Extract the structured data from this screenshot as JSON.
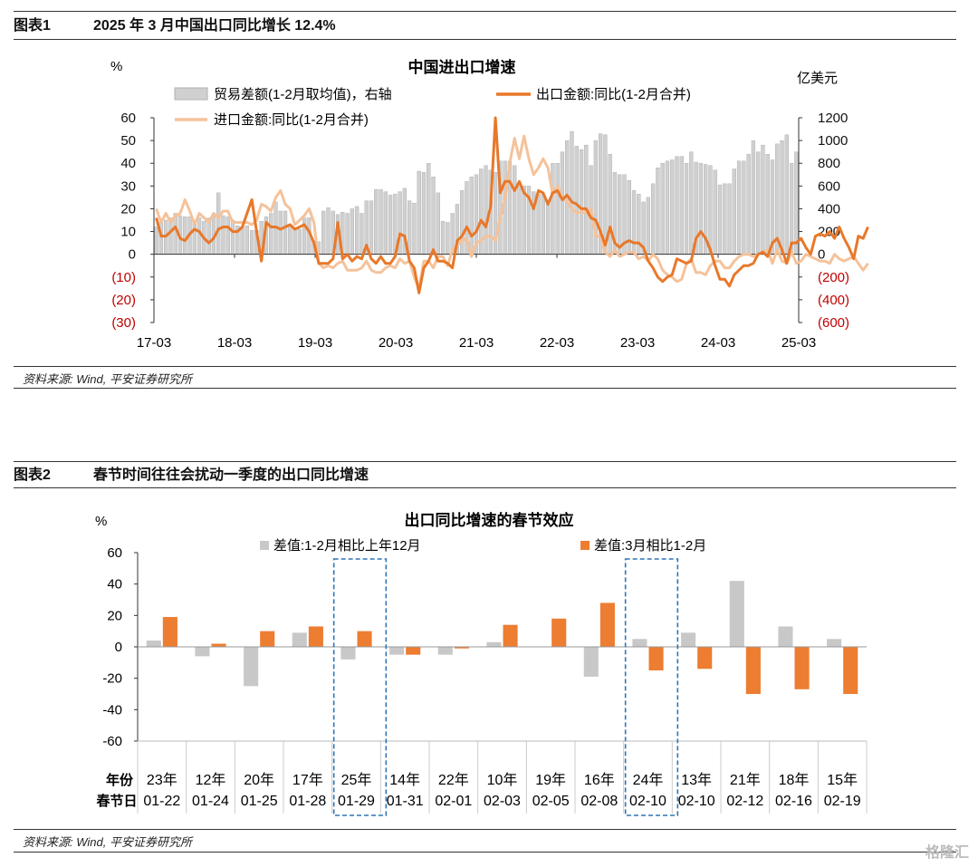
{
  "fig1": {
    "number": "图表1",
    "caption": "2025 年 3 月中国出口同比增长 12.4%",
    "source": "资料来源: Wind, 平安证券研究所",
    "chart_data": {
      "type": "bar+line",
      "title": "中国进出口增速",
      "left_unit": "%",
      "right_unit": "亿美元",
      "left_ylim": [
        -30,
        60
      ],
      "right_ylim": [
        -600,
        1200
      ],
      "left_ticks": [
        "60",
        "50",
        "40",
        "30",
        "20",
        "10",
        "0",
        "(10)",
        "(20)",
        "(30)"
      ],
      "right_ticks": [
        "1200",
        "1000",
        "800",
        "600",
        "400",
        "200",
        "0",
        "(200)",
        "(400)",
        "(600)"
      ],
      "x_ticks": [
        "17-03",
        "18-03",
        "19-03",
        "20-03",
        "21-03",
        "22-03",
        "23-03",
        "24-03",
        "25-03"
      ],
      "legend": {
        "trade": "贸易差额(1-2月取均值)，右轴",
        "export": "出口金额:同比(1-2月合并)",
        "import": "进口金额:同比(1-2月合并)"
      },
      "colors": {
        "trade": "#d0d0d0",
        "export": "#e8782a",
        "import": "#f5c29a",
        "negative_tick": "#c00000"
      },
      "series": {
        "trade_balance": [
          240,
          280,
          300,
          320,
          360,
          340,
          330,
          330,
          300,
          320,
          290,
          320,
          340,
          540,
          340,
          330,
          300,
          250,
          240,
          250,
          210,
          210,
          290,
          330,
          360,
          460,
          380,
          380,
          260,
          220,
          220,
          320,
          320,
          120,
          110,
          380,
          410,
          380,
          350,
          370,
          360,
          400,
          420,
          360,
          470,
          470,
          570,
          570,
          550,
          520,
          530,
          550,
          580,
          470,
          450,
          730,
          720,
          800,
          680,
          540,
          290,
          280,
          360,
          440,
          560,
          640,
          680,
          700,
          750,
          780,
          740,
          720,
          820,
          820,
          820,
          780,
          600,
          600,
          600,
          550,
          530,
          530,
          480,
          800,
          800,
          900,
          1000,
          1080,
          950,
          920,
          960,
          780,
          1000,
          1060,
          1050,
          880,
          720,
          700,
          700,
          650,
          560,
          530,
          460,
          500,
          620,
          760,
          800,
          820,
          830,
          860,
          860,
          800,
          900,
          810,
          800,
          790,
          780,
          740,
          610,
          620,
          620,
          750,
          820,
          820,
          880,
          1000,
          900,
          960,
          880,
          830,
          970,
          1000,
          1050,
          800,
          900
        ],
        "export_yoy": [
          16,
          8,
          8,
          10,
          12,
          7,
          6,
          9,
          11,
          10,
          7,
          5,
          7,
          11,
          12,
          12,
          10,
          10,
          12,
          18,
          24,
          10,
          -3,
          14,
          12,
          12,
          11,
          12,
          13,
          11,
          12,
          13,
          10,
          5,
          -4,
          -4,
          -4,
          -2,
          14,
          -2,
          0,
          -3,
          -1,
          -2,
          4,
          -2,
          -4,
          -1,
          -4,
          -4,
          -1,
          9,
          8,
          -3,
          -6,
          -17,
          -6,
          -3,
          2,
          -3,
          -3,
          -4,
          -6,
          6,
          8,
          12,
          8,
          10,
          15,
          12,
          21,
          60,
          27,
          32,
          32,
          28,
          32,
          27,
          25,
          20,
          28,
          27,
          22,
          27,
          28,
          24,
          26,
          23,
          22,
          20,
          20,
          16,
          15,
          10,
          4,
          12,
          5,
          3,
          5,
          6,
          5,
          5,
          3,
          -3,
          -6,
          -10,
          -12,
          -10,
          -9,
          -2,
          -3,
          -4,
          -3,
          7,
          10,
          7,
          2,
          -5,
          -11,
          -11,
          -14,
          -9,
          -7,
          -5,
          -5,
          -4,
          0,
          1,
          -1,
          5,
          7,
          2,
          -4,
          5,
          5,
          7,
          3,
          0,
          8,
          9,
          8,
          10,
          7,
          12,
          7,
          3,
          -2,
          8,
          7,
          12
        ],
        "import_yoy": [
          20,
          14,
          18,
          14,
          17,
          18,
          24,
          19,
          13,
          18,
          16,
          14,
          18,
          16,
          19,
          19,
          14,
          14,
          14,
          14,
          13,
          15,
          22,
          21,
          19,
          25,
          28,
          22,
          20,
          13,
          15,
          17,
          20,
          14,
          -4,
          -6,
          -5,
          -6,
          -4,
          -3,
          -7,
          -7,
          -7,
          -6,
          -3,
          -7,
          -8,
          -8,
          -6,
          -5,
          -6,
          -2,
          -4,
          -3,
          -10,
          -15,
          -3,
          -3,
          -6,
          -1,
          -1,
          -5,
          2,
          4,
          6,
          7,
          -1,
          5,
          6,
          8,
          8,
          6,
          16,
          24,
          40,
          51,
          42,
          52,
          42,
          35,
          38,
          42,
          38,
          26,
          30,
          25,
          23,
          20,
          18,
          19,
          18,
          20,
          8,
          8,
          1,
          -1,
          2,
          -1,
          0,
          1,
          1,
          -2,
          -1,
          -3,
          0,
          -2,
          -7,
          -9,
          -10,
          -12,
          -11,
          -4,
          -2,
          -8,
          -8,
          -9,
          -5,
          -3,
          -3,
          -6,
          -6,
          -3,
          -1,
          0,
          0,
          -1,
          0,
          1,
          2,
          -4,
          2,
          -3,
          -4,
          1,
          -4,
          -3,
          0,
          -1,
          -2,
          -3,
          -3,
          -4,
          0,
          -2,
          -3,
          -2,
          -1,
          -4,
          -7,
          -4
        ]
      }
    }
  },
  "fig2": {
    "number": "图表2",
    "caption": "春节时间往往会扰动一季度的出口同比增速",
    "source": "资料来源: Wind, 平安证券研究所",
    "chart_data": {
      "type": "bar",
      "title": "出口同比增速的春节效应",
      "unit": "%",
      "ylim": [
        -60,
        60
      ],
      "y_ticks": [
        "60",
        "40",
        "20",
        "0",
        "-20",
        "-40",
        "-60"
      ],
      "row_label_year": "年份",
      "row_label_date": "春节日",
      "categories_year": [
        "23年",
        "12年",
        "20年",
        "17年",
        "25年",
        "14年",
        "22年",
        "10年",
        "19年",
        "16年",
        "24年",
        "13年",
        "21年",
        "18年",
        "15年"
      ],
      "categories_date": [
        "01-22",
        "01-24",
        "01-25",
        "01-28",
        "01-29",
        "01-31",
        "02-01",
        "02-03",
        "02-05",
        "02-08",
        "02-10",
        "02-10",
        "02-12",
        "02-16",
        "02-19"
      ],
      "highlighted": [
        "25年",
        "24年"
      ],
      "series": [
        {
          "name": "差值:1-2月相比上年12月",
          "color": "#c8c8c8",
          "values": [
            4,
            -6,
            -25,
            9,
            -8,
            -5,
            -5,
            3,
            0,
            -19,
            5,
            9,
            42,
            13,
            5
          ]
        },
        {
          "name": "差值:3月相比1-2月",
          "color": "#ed7d31",
          "values": [
            19,
            2,
            10,
            13,
            10,
            -5,
            -1,
            14,
            18,
            28,
            -15,
            -14,
            -30,
            -27,
            -30
          ]
        }
      ]
    }
  },
  "watermark": "格隆汇"
}
